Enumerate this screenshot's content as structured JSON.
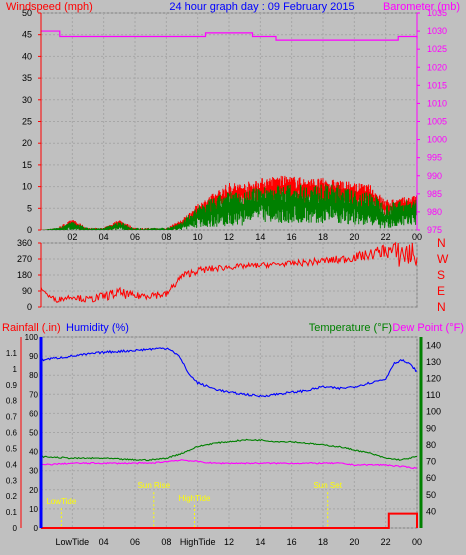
{
  "header": {
    "left_label": "Windspeed (mph)",
    "title": "24 hour graph day : 09 February 2015",
    "right_label": "Barometer (mb)"
  },
  "panel3": {
    "left1": "Rainfall (.in)",
    "left2": "Humidity (%)",
    "right1": "Temperature (°F)",
    "right2": "Dew Point (°F)"
  },
  "colors": {
    "background": "#c0c0c0",
    "grid": "#a6a6a6",
    "wind": "#008000",
    "gust": "#ff0000",
    "barometer": "#ff00ff",
    "direction": "#ff0000",
    "humidity": "#0000ff",
    "temperature": "#008000",
    "dewpoint": "#ff00ff",
    "rain": "#ff0000",
    "event": "#ffff00"
  },
  "chart_data": [
    {
      "type": "line",
      "title": "24 hour graph day : 09 February 2015",
      "xlabel": "",
      "x_ticks": [
        "02",
        "04",
        "06",
        "08",
        "10",
        "12",
        "14",
        "16",
        "18",
        "20",
        "22",
        "00"
      ],
      "y_left": {
        "label": "Windspeed (mph)",
        "range": [
          0,
          50
        ],
        "ticks": [
          0,
          5,
          10,
          15,
          20,
          25,
          30,
          35,
          40,
          45,
          50
        ]
      },
      "y_right": {
        "label": "Barometer (mb)",
        "range": [
          975,
          1035
        ],
        "ticks": [
          975,
          980,
          985,
          990,
          995,
          1000,
          1005,
          1010,
          1015,
          1020,
          1025,
          1030,
          1035
        ]
      },
      "grid": true,
      "series": [
        {
          "name": "Barometer (mb)",
          "axis": "right",
          "style": "step",
          "x": [
            0,
            1,
            1.2,
            3.5,
            6,
            9,
            10.5,
            12.5,
            13.5,
            15,
            20.5,
            22.8,
            23.6,
            24
          ],
          "y": [
            1030,
            1030,
            1028.5,
            1028.5,
            1028.5,
            1028.5,
            1029.5,
            1029.5,
            1028.5,
            1027.5,
            1027.5,
            1028.5,
            1028.5,
            1028
          ]
        },
        {
          "name": "Windspeed (mph)",
          "axis": "left",
          "style": "noisy",
          "x": [
            0,
            1,
            2,
            3,
            4,
            5,
            6,
            7,
            8,
            9,
            10,
            11,
            12,
            13,
            14,
            15,
            16,
            17,
            18,
            19,
            20,
            21,
            22,
            23,
            24
          ],
          "y": [
            0,
            0,
            1,
            0,
            0,
            1,
            0,
            0,
            0,
            1,
            3,
            4,
            5,
            5,
            6,
            6,
            6,
            6,
            6,
            6,
            5,
            5,
            3,
            4,
            4
          ],
          "spread": [
            0,
            0.5,
            1,
            0.5,
            0.5,
            1,
            0.5,
            0.5,
            0.5,
            1,
            2.5,
            3.5,
            4,
            4,
            4,
            4.5,
            4.5,
            4.5,
            4.5,
            4.5,
            4,
            4,
            3,
            3,
            3
          ]
        },
        {
          "name": "Gust (mph)",
          "axis": "left",
          "style": "noisy",
          "x": [
            0,
            1,
            2,
            3,
            4,
            5,
            6,
            7,
            8,
            9,
            10,
            11,
            12,
            13,
            14,
            15,
            16,
            17,
            18,
            19,
            20,
            21,
            22,
            23,
            24
          ],
          "y": [
            0,
            0,
            1.5,
            0,
            0,
            1.5,
            0,
            0,
            0,
            1.5,
            4,
            6,
            8,
            8,
            9,
            9.5,
            9.5,
            9,
            9,
            8.5,
            8,
            7.5,
            5,
            5.5,
            6
          ],
          "spread": [
            0,
            0.5,
            1,
            0.5,
            0.5,
            1,
            0.5,
            0.5,
            0.5,
            1,
            2,
            2.5,
            3,
            3,
            3,
            3,
            3,
            3,
            3,
            3,
            3,
            3,
            2,
            2,
            2
          ]
        }
      ]
    },
    {
      "type": "scatter",
      "title": "",
      "y_left": {
        "label": "",
        "range": [
          0,
          360
        ],
        "ticks": [
          0,
          90,
          180,
          270,
          360
        ]
      },
      "y_right_labels": [
        "N",
        "W",
        "S",
        "E",
        "N"
      ],
      "x_ticks": [],
      "grid": true,
      "series": [
        {
          "name": "Wind direction",
          "axis": "left",
          "style": "noisy",
          "x": [
            0,
            0.5,
            1,
            2,
            3,
            4,
            5,
            6,
            7,
            8,
            9,
            10,
            11,
            12,
            13,
            14,
            15,
            16,
            17,
            18,
            19,
            20,
            21,
            22,
            23,
            24
          ],
          "y": [
            110,
            60,
            40,
            60,
            40,
            60,
            80,
            60,
            70,
            70,
            175,
            205,
            215,
            225,
            230,
            235,
            240,
            245,
            250,
            260,
            265,
            280,
            295,
            320,
            300,
            300
          ],
          "spread": [
            20,
            20,
            30,
            30,
            40,
            50,
            60,
            40,
            50,
            40,
            40,
            40,
            40,
            30,
            30,
            30,
            30,
            30,
            40,
            40,
            50,
            50,
            60,
            80,
            180,
            180
          ]
        }
      ]
    },
    {
      "type": "line",
      "title": "",
      "x_ticks": [
        "LowTide",
        "04",
        "06",
        "08",
        "HighTide",
        "12",
        "14",
        "16",
        "18",
        "20",
        "22",
        "00"
      ],
      "y_left_outer": {
        "label": "Rainfall (.in)",
        "range": [
          0,
          1.2
        ],
        "ticks": [
          0,
          0.1,
          0.2,
          0.3,
          0.4,
          0.5,
          0.6,
          0.7,
          0.8,
          0.9,
          1,
          1.1
        ]
      },
      "y_left_inner": {
        "label": "Humidity (%)",
        "range": [
          0,
          100
        ],
        "ticks": [
          0,
          10,
          20,
          30,
          40,
          50,
          60,
          70,
          80,
          90,
          100
        ]
      },
      "y_right": {
        "label": "Temperature (°F)",
        "range": [
          30,
          145
        ],
        "ticks": [
          40,
          50,
          60,
          70,
          80,
          90,
          100,
          110,
          120,
          130,
          140
        ]
      },
      "grid": true,
      "series": [
        {
          "name": "Humidity (%)",
          "axis": "left_inner",
          "x": [
            0,
            2,
            4,
            6,
            7.5,
            8.2,
            8.8,
            9.5,
            10,
            11,
            12,
            13,
            14,
            15,
            16,
            17,
            18,
            19,
            20,
            21,
            22,
            22.5,
            23,
            23.5,
            24
          ],
          "y": [
            88,
            90,
            92,
            93,
            94,
            94,
            90,
            80,
            76,
            73,
            71,
            70,
            69,
            70,
            71,
            72,
            74,
            73,
            74,
            76,
            78,
            86,
            88,
            86,
            82
          ]
        },
        {
          "name": "Temperature (°F)",
          "axis": "right",
          "x": [
            0,
            2,
            4,
            6,
            7,
            8,
            9,
            10,
            11,
            12,
            13,
            14,
            15,
            16,
            17,
            18,
            19,
            20,
            21,
            22,
            23,
            24
          ],
          "y": [
            73,
            72,
            72,
            71,
            71,
            72,
            75,
            79,
            81,
            82,
            83,
            83,
            82,
            82,
            81,
            80,
            79,
            77,
            75,
            72,
            71,
            73
          ]
        },
        {
          "name": "Dew Point (°F)",
          "axis": "right",
          "x": [
            0,
            2,
            4,
            6,
            7,
            8,
            9,
            10,
            11,
            12,
            13,
            14,
            15,
            16,
            17,
            18,
            19,
            20,
            21,
            22,
            23,
            24
          ],
          "y": [
            68,
            69,
            69,
            69,
            69,
            70,
            71,
            70,
            69,
            69,
            69,
            69,
            69,
            69,
            69,
            69,
            69,
            68,
            68,
            68,
            67,
            66
          ]
        },
        {
          "name": "Rainfall (.in)",
          "axis": "left_outer",
          "style": "step",
          "x": [
            0,
            22,
            22.2,
            23.8,
            24
          ],
          "y": [
            0,
            0,
            0.09,
            0.09,
            0
          ]
        }
      ],
      "events": [
        {
          "label": "LowTide",
          "x": 1.3,
          "label_level": 0.15
        },
        {
          "label": "Sun Rise",
          "x": 7.2,
          "label_level": 0.25
        },
        {
          "label": "HighTide",
          "x": 9.8,
          "label_level": 0.17
        },
        {
          "label": "Sun Set",
          "x": 18.3,
          "label_level": 0.25
        }
      ]
    }
  ]
}
